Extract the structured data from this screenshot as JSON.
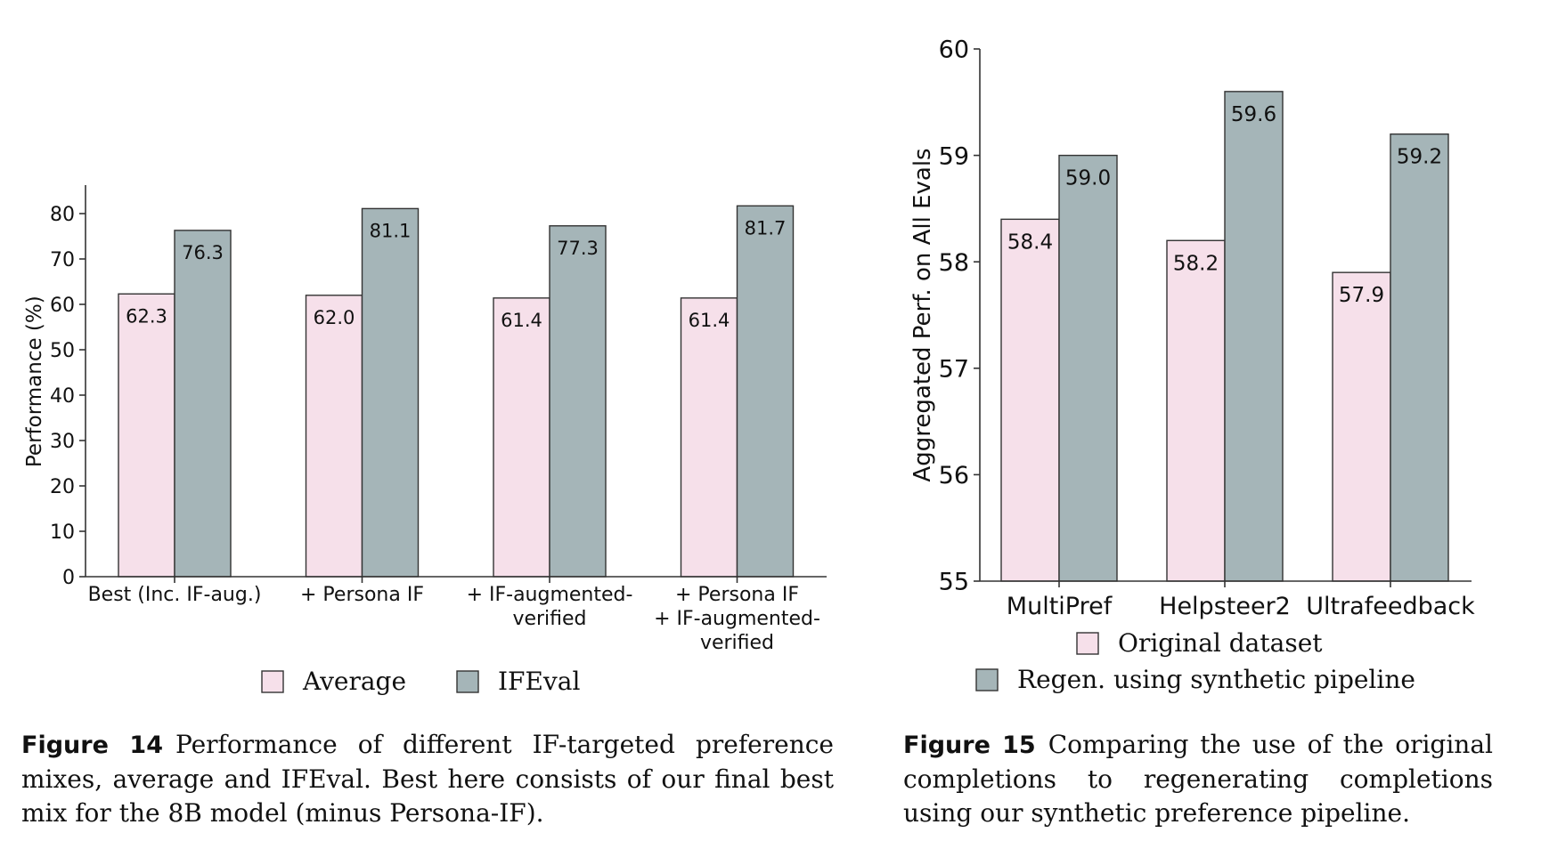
{
  "chart_data": [
    {
      "type": "bar",
      "categories": [
        [
          "Best (Inc. IF-aug.)"
        ],
        [
          "+ Persona IF"
        ],
        [
          "+ IF-augmented-",
          "verified"
        ],
        [
          "+ Persona IF",
          "+ IF-augmented-",
          "verified"
        ]
      ],
      "series": [
        {
          "name": "Average",
          "values": [
            62.3,
            62.0,
            61.4,
            61.4
          ],
          "color": "#f6e0ea"
        },
        {
          "name": "IFEval",
          "values": [
            76.3,
            81.1,
            77.3,
            81.7
          ],
          "color": "#a5b5b8"
        }
      ],
      "value_labels": [
        [
          "62.3",
          "62.0",
          "61.4",
          "61.4"
        ],
        [
          "76.3",
          "81.1",
          "77.3",
          "81.7"
        ]
      ],
      "ylabel": "Performance (%)",
      "xlabel": "",
      "ylim": [
        0,
        86
      ],
      "yticks": [
        0,
        10,
        20,
        30,
        40,
        50,
        60,
        70,
        80
      ],
      "grid": false,
      "legend": "bottom"
    },
    {
      "type": "bar",
      "categories": [
        "MultiPref",
        "Helpsteer2",
        "Ultrafeedback"
      ],
      "series": [
        {
          "name": "Original dataset",
          "values": [
            58.4,
            58.2,
            57.9
          ],
          "color": "#f6e0ea"
        },
        {
          "name": "Regen. using synthetic pipeline",
          "values": [
            59.0,
            59.6,
            59.2
          ],
          "color": "#a5b5b8"
        }
      ],
      "value_labels": [
        [
          "58.4",
          "58.2",
          "57.9"
        ],
        [
          "59.0",
          "59.6",
          "59.2"
        ]
      ],
      "ylabel": "Aggregated Perf. on All Evals",
      "xlabel": "",
      "ylim": [
        55,
        60
      ],
      "yticks": [
        55,
        56,
        57,
        58,
        59,
        60
      ],
      "grid": false,
      "legend": "bottom"
    }
  ],
  "captions": {
    "fig14": {
      "label": "Figure 14",
      "text": "Performance of different IF-targeted preference mixes, average and IFEval. Best here consists of our final best mix for the 8B model (minus Persona-IF)."
    },
    "fig15": {
      "label": "Figure 15",
      "text": "Comparing the use of the original completions to regenerating completions using our synthetic preference pipeline."
    }
  }
}
